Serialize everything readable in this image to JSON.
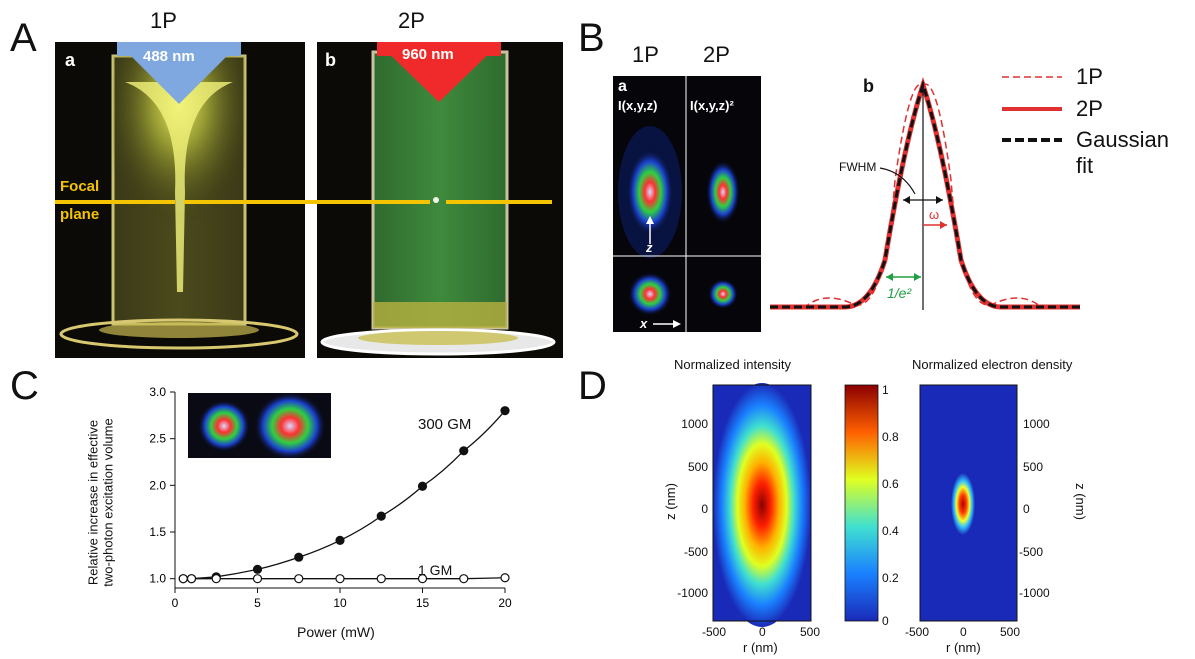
{
  "panelA": {
    "letter": "A",
    "header_1p": "1P",
    "header_2p": "2P",
    "photo_a_label": "a",
    "photo_b_label": "b",
    "beam_1p": "488 nm",
    "beam_2p": "960 nm",
    "focal_line1": "Focal",
    "focal_line2": "plane",
    "colors": {
      "beam_1p": "#7fa7e0",
      "beam_2p": "#f02a2a",
      "focal": "#f5c400",
      "glow_1p": "#e8f060",
      "glow_2p": "#3a8a3a"
    }
  },
  "panelB": {
    "letter": "B",
    "header_1p": "1P",
    "header_2p": "2P",
    "sub_a": "a",
    "sub_b": "b",
    "intensity_1p": "I(x,y,z)",
    "intensity_2p": "I(x,y,z)²",
    "axis_z": "z",
    "axis_x": "x",
    "fwhm": "FWHM",
    "omega": "ω",
    "e2": "1/e²",
    "legend": [
      {
        "label": "1P",
        "style": "dashed-thin",
        "color": "#e03030"
      },
      {
        "label": "2P",
        "style": "solid-thick",
        "color": "#e03030"
      },
      {
        "label": "Gaussian fit",
        "style": "dashed-thick",
        "color": "#111111"
      }
    ]
  },
  "panelC": {
    "letter": "C",
    "ylabel_line1": "Relative increase in effective",
    "ylabel_line2": "two-photon excitation volume",
    "xlabel": "Power (mW)",
    "label_300": "300 GM",
    "label_1": "1 GM"
  },
  "panelD": {
    "letter": "D",
    "title_left": "Normalized intensity",
    "title_right": "Normalized electron density",
    "xlabel": "r (nm)",
    "ylabel": "z (nm)",
    "cbar_ticks": [
      "0",
      "0.2",
      "0.4",
      "0.6",
      "0.8",
      "1"
    ],
    "y_ticks": [
      "1000",
      "500",
      "0",
      "-500",
      "-1000"
    ],
    "x_ticks": [
      "-500",
      "0",
      "500"
    ]
  },
  "chart_data": [
    {
      "type": "line",
      "xlabel": "Power (mW)",
      "ylabel": "Relative increase in effective two-photon excitation volume",
      "xlim": [
        0,
        20
      ],
      "ylim": [
        0.9,
        3.0
      ],
      "x_ticks": [
        0,
        5,
        10,
        15,
        20
      ],
      "y_ticks": [
        1.0,
        1.5,
        2.0,
        2.5,
        3.0
      ],
      "series": [
        {
          "name": "300 GM",
          "marker": "filled-circle",
          "x": [
            0.5,
            1,
            2.5,
            5,
            7.5,
            10,
            12.5,
            15,
            17.5,
            20
          ],
          "y": [
            1.0,
            1.0,
            1.02,
            1.1,
            1.23,
            1.41,
            1.67,
            1.99,
            2.37,
            2.8
          ]
        },
        {
          "name": "1 GM",
          "marker": "open-circle",
          "x": [
            0.5,
            1,
            2.5,
            5,
            7.5,
            10,
            12.5,
            15,
            17.5,
            20
          ],
          "y": [
            1.0,
            1.0,
            1.0,
            1.0,
            1.0,
            1.0,
            1.0,
            1.0,
            1.0,
            1.01
          ]
        }
      ]
    }
  ]
}
